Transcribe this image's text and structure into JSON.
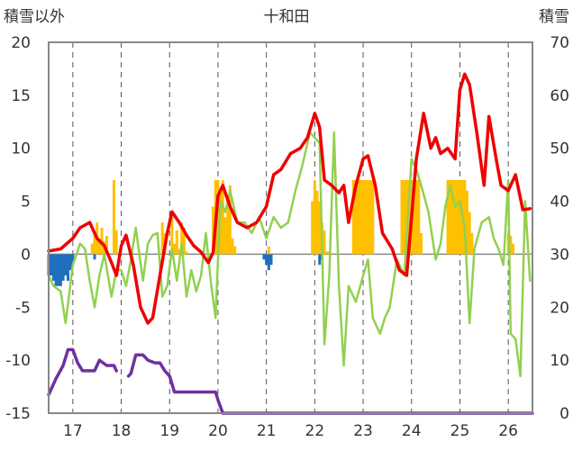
{
  "chart_data": {
    "type": "line",
    "title": "十和田",
    "ylabel_left": "積雪以外",
    "ylabel_right": "積雪",
    "ylim_left": [
      -15,
      20
    ],
    "ylim_right": [
      0,
      70
    ],
    "left_ticks": [
      "20",
      "15",
      "10",
      "5",
      "0",
      "-5",
      "-10",
      "-15"
    ],
    "right_ticks": [
      "70",
      "60",
      "50",
      "40",
      "30",
      "20",
      "10",
      "0"
    ],
    "x_range": [
      16.5,
      26.5
    ],
    "x_ticks": [
      "17",
      "18",
      "19",
      "20",
      "21",
      "22",
      "23",
      "24",
      "25",
      "26"
    ],
    "grid": "vertical dashed lines at day boundaries, solid line at 0",
    "colors": {
      "temperature": "#ee0000",
      "secondary": "#92d050",
      "snowfall": "#ffc000",
      "below_zero_bars": "#1f6fbf",
      "snow_depth": "#7030a0",
      "axis": "#888888"
    },
    "series": [
      {
        "axis": "left",
        "style": "thick-line",
        "color": "#ee0000",
        "x": [
          16.5,
          16.75,
          17.0,
          17.15,
          17.35,
          17.5,
          17.65,
          17.8,
          17.9,
          18.0,
          18.1,
          18.25,
          18.4,
          18.55,
          18.65,
          18.8,
          18.95,
          19.05,
          19.2,
          19.35,
          19.5,
          19.65,
          19.8,
          19.9,
          20.0,
          20.1,
          20.25,
          20.4,
          20.6,
          20.8,
          21.0,
          21.15,
          21.3,
          21.5,
          21.7,
          21.85,
          22.0,
          22.1,
          22.2,
          22.35,
          22.5,
          22.6,
          22.7,
          22.85,
          23.0,
          23.1,
          23.25,
          23.4,
          23.6,
          23.75,
          23.9,
          24.0,
          24.1,
          24.25,
          24.4,
          24.5,
          24.6,
          24.75,
          24.9,
          25.0,
          25.1,
          25.2,
          25.35,
          25.5,
          25.6,
          25.75,
          25.85,
          26.0,
          26.15,
          26.3,
          26.45
        ],
        "values": [
          0.3,
          0.5,
          1.5,
          2.5,
          3.0,
          1.5,
          0.8,
          -0.8,
          -2.0,
          0.8,
          1.8,
          -1.0,
          -5.0,
          -6.5,
          -6.0,
          -2.0,
          2.0,
          4.0,
          3.0,
          1.8,
          0.8,
          0.2,
          -0.8,
          0.2,
          5.5,
          6.5,
          4.5,
          3.0,
          2.5,
          3.0,
          4.5,
          7.5,
          8.0,
          9.5,
          10.0,
          11.0,
          13.3,
          12.0,
          7.0,
          6.5,
          5.8,
          6.5,
          3.0,
          6.5,
          9.0,
          9.3,
          6.5,
          2.0,
          0.5,
          -1.5,
          -2.0,
          3.5,
          9.0,
          13.3,
          10.0,
          11.0,
          9.5,
          10.0,
          9.0,
          15.5,
          17.0,
          16.0,
          11.5,
          6.5,
          13.0,
          9.0,
          6.5,
          6.0,
          7.5,
          4.2,
          4.3
        ]
      },
      {
        "axis": "left",
        "style": "line",
        "color": "#92d050",
        "x": [
          16.5,
          16.6,
          16.75,
          16.85,
          17.0,
          17.15,
          17.25,
          17.35,
          17.45,
          17.55,
          17.65,
          17.8,
          17.9,
          18.0,
          18.1,
          18.2,
          18.3,
          18.45,
          18.55,
          18.65,
          18.75,
          18.85,
          18.95,
          19.05,
          19.15,
          19.25,
          19.35,
          19.45,
          19.55,
          19.65,
          19.75,
          19.85,
          19.95,
          20.05,
          20.15,
          20.25,
          20.4,
          20.55,
          20.7,
          20.85,
          21.0,
          21.15,
          21.3,
          21.45,
          21.6,
          21.75,
          21.9,
          22.0,
          22.1,
          22.2,
          22.3,
          22.4,
          22.5,
          22.6,
          22.7,
          22.85,
          23.0,
          23.1,
          23.2,
          23.35,
          23.45,
          23.55,
          23.7,
          23.85,
          24.0,
          24.1,
          24.2,
          24.35,
          24.5,
          24.6,
          24.7,
          24.8,
          24.9,
          25.0,
          25.1,
          25.2,
          25.3,
          25.45,
          25.6,
          25.7,
          25.8,
          25.9,
          26.0,
          26.05,
          26.15,
          26.25,
          26.35,
          26.45
        ],
        "values": [
          -2.0,
          -3.0,
          -3.5,
          -6.5,
          -1.0,
          1.0,
          0.5,
          -2.5,
          -5.0,
          -2.0,
          0.0,
          -4.0,
          -1.5,
          -1.5,
          -3.0,
          -0.5,
          2.5,
          -2.5,
          1.0,
          1.8,
          2.0,
          -4.0,
          -3.0,
          0.5,
          -2.5,
          1.0,
          -4.0,
          -1.5,
          -3.5,
          -2.0,
          2.0,
          -2.5,
          -6.0,
          5.0,
          4.0,
          6.0,
          3.0,
          3.0,
          2.0,
          3.5,
          1.5,
          3.5,
          2.5,
          3.0,
          6.0,
          8.5,
          11.5,
          11.0,
          10.5,
          -8.5,
          -2.0,
          11.5,
          -3.0,
          -10.5,
          -3.0,
          -4.5,
          -2.0,
          -0.5,
          -6.0,
          -7.5,
          -6.0,
          -5.0,
          -0.5,
          -2.0,
          9.0,
          8.0,
          6.5,
          4.0,
          -0.5,
          1.0,
          4.5,
          6.5,
          4.5,
          5.0,
          2.5,
          -6.5,
          0.5,
          3.0,
          3.5,
          1.5,
          0.5,
          -1.0,
          7.0,
          -7.5,
          -8.0,
          -11.5,
          5.0,
          -2.5
        ]
      },
      {
        "axis": "right",
        "style": "thick-line",
        "color": "#7030a0",
        "segments": [
          {
            "x": [
              16.5,
              16.55,
              16.65,
              16.8,
              16.9,
              17.0,
              17.1,
              17.2,
              17.3,
              17.45,
              17.55,
              17.7,
              17.85,
              17.9
            ],
            "values": [
              3.5,
              4.5,
              6.5,
              9.0,
              12.0,
              12.0,
              9.5,
              8.0,
              8.0,
              8.0,
              10.0,
              9.0,
              9.0,
              8.0
            ]
          },
          {
            "x": [
              18.15,
              18.2,
              18.3,
              18.45,
              18.55,
              18.7,
              18.8,
              18.9,
              19.0,
              19.1,
              19.2,
              19.4,
              19.6,
              19.8,
              19.95,
              20.0,
              20.1
            ],
            "values": [
              7.0,
              7.5,
              11.0,
              11.0,
              10.0,
              9.5,
              9.5,
              8.0,
              7.0,
              4.0,
              4.0,
              4.0,
              4.0,
              4.0,
              4.0,
              2.5,
              0.0
            ]
          },
          {
            "x": [
              20.1,
              26.5
            ],
            "values": [
              0.0,
              0.0
            ]
          }
        ]
      },
      {
        "axis": "right",
        "style": "bars",
        "color": "#ffc000",
        "x": [
          17.4,
          17.45,
          17.5,
          17.55,
          17.6,
          17.65,
          17.7,
          17.85,
          17.9,
          18.85,
          18.9,
          19.05,
          19.1,
          19.15,
          19.2,
          19.25,
          19.3,
          19.35,
          19.9,
          19.95,
          20.0,
          20.05,
          20.1,
          20.15,
          20.2,
          20.25,
          20.3,
          20.35,
          20.4,
          20.45,
          20.5,
          20.55,
          20.6,
          20.65,
          20.7,
          20.75,
          20.8,
          20.85,
          20.9,
          20.95,
          21.0,
          21.05,
          21.95,
          22.0,
          22.05,
          22.1,
          22.15,
          22.2,
          22.25,
          22.3,
          22.35,
          22.8,
          22.85,
          22.9,
          22.95,
          23.0,
          23.05,
          23.1,
          23.15,
          23.2,
          23.25,
          23.8,
          23.85,
          23.9,
          23.95,
          24.0,
          24.05,
          24.1,
          24.15,
          24.2,
          24.75,
          24.8,
          24.85,
          24.9,
          24.95,
          25.0,
          25.05,
          25.1,
          25.15,
          25.2,
          25.25,
          26.0,
          26.05,
          26.1
        ],
        "values": [
          2.0,
          4.0,
          6.0,
          3.0,
          5.0,
          2.5,
          3.5,
          14.0,
          4.5,
          6.0,
          4.0,
          7.0,
          2.0,
          4.5,
          1.0,
          6.0,
          5.0,
          0.5,
          9.0,
          14.0,
          14.0,
          12.0,
          14.0,
          7.0,
          10.0,
          13.0,
          3.0,
          1.5,
          0.0,
          0.0,
          0.0,
          0.0,
          0.0,
          0.0,
          0.0,
          0.0,
          0.0,
          0.0,
          0.0,
          0.0,
          0.0,
          1.5,
          10.0,
          14.0,
          12.0,
          10.0,
          6.0,
          4.5,
          0.5,
          0.5,
          0.0,
          14.0,
          14.0,
          14.0,
          14.0,
          14.0,
          14.0,
          14.0,
          14.0,
          14.0,
          0.0,
          14.0,
          14.0,
          14.0,
          14.0,
          14.0,
          14.0,
          14.0,
          14.0,
          4.0,
          14.0,
          14.0,
          14.0,
          14.0,
          14.0,
          14.0,
          14.0,
          14.0,
          12.0,
          8.0,
          4.0,
          4.0,
          3.5,
          2.0
        ]
      },
      {
        "axis": "left",
        "style": "bars",
        "color": "#1f6fbf",
        "x": [
          16.5,
          16.55,
          16.6,
          16.65,
          16.7,
          16.75,
          16.8,
          16.85,
          16.9,
          16.95,
          17.0,
          17.45,
          20.95,
          21.0,
          21.05,
          21.1,
          22.1,
          22.15
        ],
        "values": [
          -2.0,
          -2.0,
          -2.5,
          -3.0,
          -3.0,
          -3.0,
          -2.5,
          -2.0,
          -2.5,
          -1.5,
          -1.0,
          -0.5,
          -0.5,
          -1.0,
          -1.5,
          -1.0,
          -1.0,
          -0.5
        ]
      }
    ]
  }
}
